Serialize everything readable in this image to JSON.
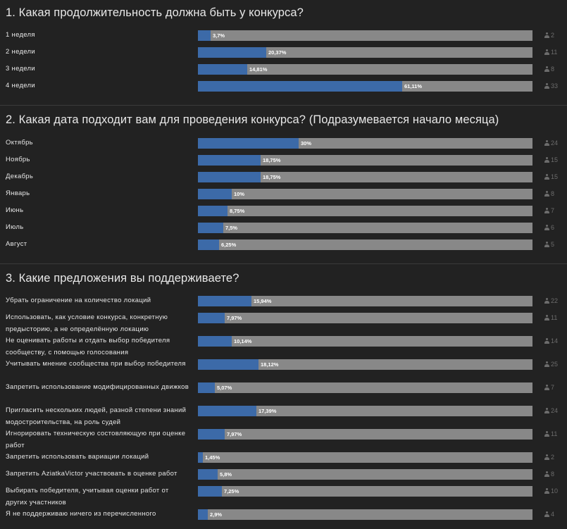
{
  "polls": [
    {
      "title": "1. Какая продолжительность должна быть у конкурса?",
      "options": [
        {
          "label": "1 неделя",
          "percent": 3.7,
          "percent_label": "3,7%",
          "votes": "2"
        },
        {
          "label": "2 недели",
          "percent": 20.37,
          "percent_label": "20,37%",
          "votes": "11"
        },
        {
          "label": "3 недели",
          "percent": 14.81,
          "percent_label": "14,81%",
          "votes": "8"
        },
        {
          "label": "4 недели",
          "percent": 61.11,
          "percent_label": "61,11%",
          "votes": "33"
        }
      ]
    },
    {
      "title": "2. Какая дата подходит вам для проведения конкурса? (Подразумевается начало месяца)",
      "options": [
        {
          "label": "Октябрь",
          "percent": 30,
          "percent_label": "30%",
          "votes": "24"
        },
        {
          "label": "Ноябрь",
          "percent": 18.75,
          "percent_label": "18,75%",
          "votes": "15"
        },
        {
          "label": "Декабрь",
          "percent": 18.75,
          "percent_label": "18,75%",
          "votes": "15"
        },
        {
          "label": "Январь",
          "percent": 10,
          "percent_label": "10%",
          "votes": "8"
        },
        {
          "label": "Июнь",
          "percent": 8.75,
          "percent_label": "8,75%",
          "votes": "7"
        },
        {
          "label": "Июль",
          "percent": 7.5,
          "percent_label": "7,5%",
          "votes": "6"
        },
        {
          "label": "Август",
          "percent": 6.25,
          "percent_label": "6,25%",
          "votes": "5"
        }
      ]
    },
    {
      "title": "3. Какие предложения вы поддерживаете?",
      "options": [
        {
          "label": "Убрать ограничение на количество локаций",
          "percent": 15.94,
          "percent_label": "15,94%",
          "votes": "22"
        },
        {
          "label": "Использовать, как условие конкурса, конкретную предысторию, а не определённую локацию",
          "percent": 7.97,
          "percent_label": "7,97%",
          "votes": "11"
        },
        {
          "label": "Не оценивать работы и отдать выбор победителя сообществу, с помощью голосования",
          "percent": 10.14,
          "percent_label": "10,14%",
          "votes": "14"
        },
        {
          "label": "Учитывать мнение сообщества при выбор победителя",
          "percent": 18.12,
          "percent_label": "18,12%",
          "votes": "25"
        },
        {
          "label": "Запретить использование модифицированных движков",
          "percent": 5.07,
          "percent_label": "5,07%",
          "votes": "7"
        },
        {
          "label": "Пригласить нескольких людей, разной степени знаний модостроительства, на роль судей",
          "percent": 17.39,
          "percent_label": "17,39%",
          "votes": "24"
        },
        {
          "label": "Игнорировать техническую состовляющую при оценке работ",
          "percent": 7.97,
          "percent_label": "7,97%",
          "votes": "11"
        },
        {
          "label": "Запретить использовать вариации локаций",
          "percent": 1.45,
          "percent_label": "1,45%",
          "votes": "2"
        },
        {
          "label": "Запретить AziatkaVictor участвовать в оценке работ",
          "percent": 5.8,
          "percent_label": "5,8%",
          "votes": "8"
        },
        {
          "label": "Выбирать победителя, учитывая оценки работ от других участников",
          "percent": 7.25,
          "percent_label": "7,25%",
          "votes": "10"
        },
        {
          "label": "Я не поддерживаю ничего из перечисленного",
          "percent": 2.9,
          "percent_label": "2,9%",
          "votes": "4"
        }
      ]
    }
  ],
  "colors": {
    "background": "#222222",
    "bar_track": "#888888",
    "bar_fill": "#3c6aa8",
    "text": "#e6e6e6",
    "muted": "#6c6c6c"
  }
}
